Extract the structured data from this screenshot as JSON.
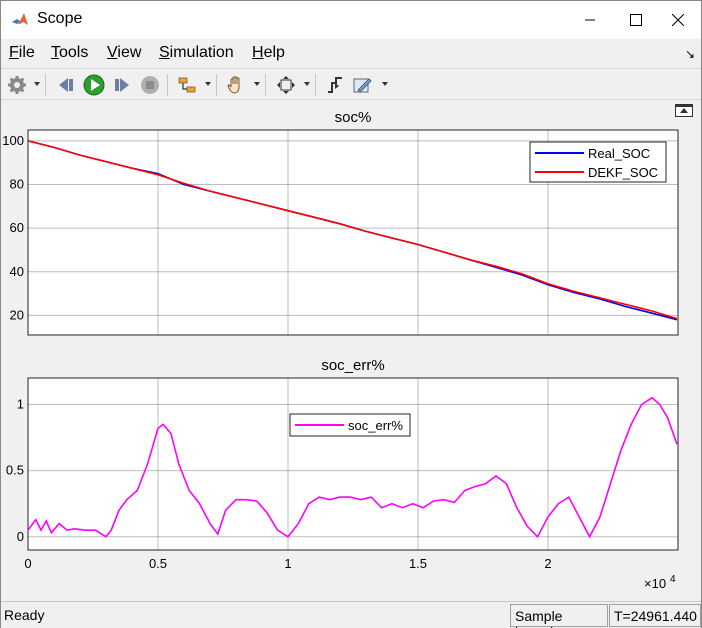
{
  "window": {
    "title": "Scope"
  },
  "menu": {
    "items": [
      {
        "pre": "",
        "ul": "F",
        "post": "ile"
      },
      {
        "pre": "",
        "ul": "T",
        "post": "ools"
      },
      {
        "pre": "",
        "ul": "V",
        "post": "iew"
      },
      {
        "pre": "",
        "ul": "S",
        "post": "imulation"
      },
      {
        "pre": "",
        "ul": "H",
        "post": "elp"
      }
    ]
  },
  "toolbar": {
    "icons": [
      "gear-icon",
      "step-back-icon",
      "run-icon",
      "step-forward-icon",
      "stop-icon",
      "signal-selector-icon",
      "pan-hand-icon",
      "zoom-fit-icon",
      "triggers-icon",
      "style-edit-icon"
    ]
  },
  "chart_data": [
    {
      "type": "line",
      "title": "soc%",
      "xlabel": "",
      "ylabel": "",
      "xlim": [
        0,
        25000
      ],
      "ylim": [
        11,
        105
      ],
      "yticks": [
        20,
        40,
        60,
        80,
        100
      ],
      "xticks": [
        0,
        5000,
        10000,
        15000,
        20000,
        25000
      ],
      "grid": true,
      "legend_position": "top-right",
      "series": [
        {
          "name": "Real_SOC",
          "color": "#0000ff",
          "x": [
            0,
            1000,
            2000,
            3000,
            4000,
            5000,
            6000,
            7000,
            8000,
            9000,
            10000,
            11000,
            12000,
            13000,
            14000,
            15000,
            16000,
            17000,
            18000,
            19000,
            20000,
            21000,
            22000,
            23000,
            24000,
            24961
          ],
          "y": [
            100,
            97,
            93.5,
            90.5,
            87.5,
            85,
            80,
            77,
            74,
            71,
            68,
            65,
            62,
            58.5,
            55.5,
            52.5,
            49,
            45.5,
            42,
            38.5,
            34,
            30.5,
            27.5,
            24,
            21,
            18
          ]
        },
        {
          "name": "DEKF_SOC",
          "color": "#ff0000",
          "x": [
            0,
            1000,
            2000,
            3000,
            4000,
            5000,
            6000,
            7000,
            8000,
            9000,
            10000,
            11000,
            12000,
            13000,
            14000,
            15000,
            16000,
            17000,
            18000,
            19000,
            20000,
            21000,
            22000,
            23000,
            24000,
            24961
          ],
          "y": [
            100,
            97,
            93.5,
            90.5,
            87.5,
            84.5,
            80.5,
            77,
            74,
            71,
            68,
            65,
            62,
            58.5,
            55.5,
            52.5,
            49,
            45.5,
            42.5,
            39,
            34.5,
            31,
            28,
            25,
            22,
            18.5
          ]
        }
      ]
    },
    {
      "type": "line",
      "title": "soc_err%",
      "xlabel": "",
      "ylabel": "",
      "xlim": [
        0,
        25000
      ],
      "ylim": [
        -0.1,
        1.2
      ],
      "yticks": [
        0,
        0.5,
        1
      ],
      "xticks": [
        0,
        5000,
        10000,
        15000,
        20000
      ],
      "xtick_labels": [
        "0",
        "0.5",
        "1",
        "1.5",
        "2"
      ],
      "x_exponent_label": "×10",
      "x_exponent_power": "4",
      "grid": true,
      "legend_position": "top-center",
      "series": [
        {
          "name": "soc_err%",
          "color": "#ff00ff",
          "x": [
            0,
            300,
            500,
            700,
            900,
            1200,
            1500,
            1800,
            2200,
            2600,
            3000,
            3200,
            3500,
            3800,
            4200,
            4600,
            5000,
            5200,
            5500,
            5800,
            6200,
            6600,
            7000,
            7300,
            7600,
            8000,
            8400,
            8800,
            9200,
            9600,
            10000,
            10400,
            10800,
            11200,
            11600,
            12000,
            12400,
            12800,
            13200,
            13600,
            14000,
            14400,
            14800,
            15200,
            15600,
            16000,
            16400,
            16800,
            17200,
            17600,
            18000,
            18400,
            18800,
            19200,
            19600,
            20000,
            20400,
            20800,
            21200,
            21600,
            22000,
            22400,
            22800,
            23200,
            23600,
            24000,
            24300,
            24600,
            24961
          ],
          "y": [
            0.05,
            0.13,
            0.05,
            0.12,
            0.03,
            0.1,
            0.05,
            0.06,
            0.05,
            0.05,
            0.0,
            0.05,
            0.2,
            0.28,
            0.35,
            0.55,
            0.82,
            0.85,
            0.78,
            0.55,
            0.35,
            0.25,
            0.1,
            0.02,
            0.2,
            0.28,
            0.28,
            0.27,
            0.18,
            0.05,
            0.0,
            0.1,
            0.25,
            0.3,
            0.28,
            0.3,
            0.3,
            0.28,
            0.3,
            0.22,
            0.25,
            0.22,
            0.25,
            0.22,
            0.27,
            0.28,
            0.26,
            0.35,
            0.38,
            0.4,
            0.46,
            0.4,
            0.22,
            0.08,
            0.0,
            0.15,
            0.25,
            0.3,
            0.15,
            0.0,
            0.15,
            0.4,
            0.65,
            0.85,
            1.0,
            1.05,
            1.0,
            0.9,
            0.7
          ]
        }
      ]
    }
  ],
  "status": {
    "ready": "Ready",
    "sample_mode": "Sample based",
    "time": "T=24961.440"
  }
}
